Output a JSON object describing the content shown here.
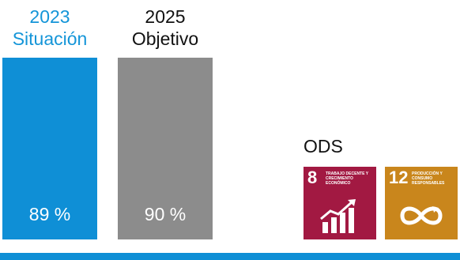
{
  "chart_data": {
    "type": "bar",
    "categories": [
      "2023 Situación",
      "2025 Objetivo"
    ],
    "values": [
      89,
      90
    ],
    "value_labels": [
      "89 %",
      "90 %"
    ],
    "header_years": [
      "2023",
      "2025"
    ],
    "header_names": [
      "Situación",
      "Objetivo"
    ],
    "colors": [
      "#0f8fd6",
      "#8c8c8c"
    ],
    "header_colors": [
      "#1495d8",
      "#111111"
    ],
    "ylim": [
      0,
      100
    ]
  },
  "ods": {
    "label": "ODS",
    "goals": [
      {
        "number": "8",
        "text": "TRABAJO DECENTE Y CRECIMIENTO ECONÓMICO",
        "color": "#a21942",
        "icon": "growth-chart-icon"
      },
      {
        "number": "12",
        "text": "PRODUCCIÓN Y CONSUMO RESPONSABLES",
        "color": "#c9861c",
        "icon": "infinity-loop-icon"
      }
    ]
  },
  "baseline_color": "#0f8fd6"
}
